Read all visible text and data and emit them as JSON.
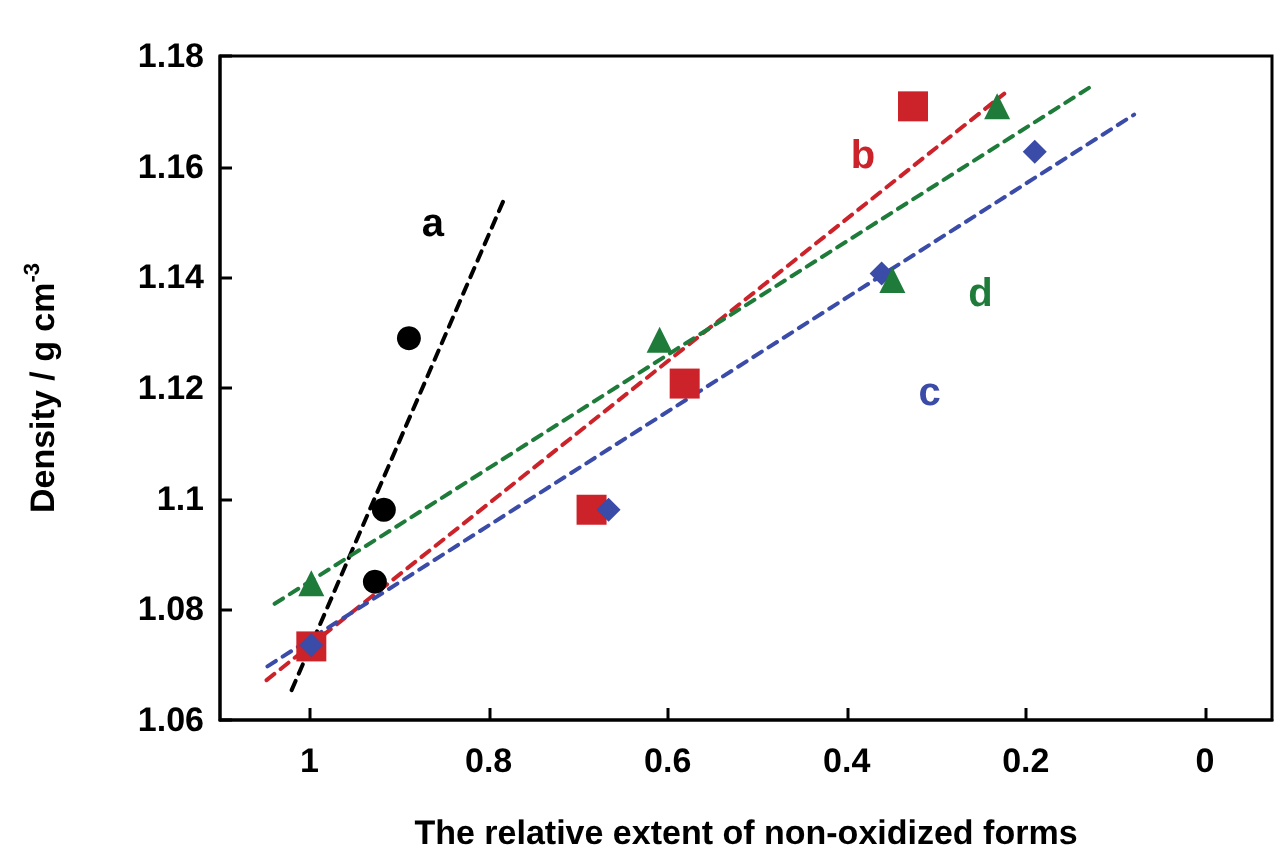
{
  "chart_data": {
    "type": "scatter",
    "xlabel": "The relative extent of non-oxidized forms",
    "ylabel": "Density / g cm$^{-3}$",
    "xlim": [
      1.1,
      -0.075
    ],
    "xticks": [
      1,
      0.8,
      0.6,
      0.4,
      0.2,
      0
    ],
    "ylim": [
      1.06,
      1.18
    ],
    "yticks": [
      1.06,
      1.08,
      1.1,
      1.12,
      1.14,
      1.16,
      1.18
    ],
    "grid": false,
    "series": [
      {
        "type": "line",
        "color": "#000000",
        "line_style": "dashed",
        "marker": "none",
        "x": [
          1.02,
          0.783
        ],
        "values": [
          1.0654,
          1.154
        ]
      },
      {
        "type": "line",
        "color": "#cc2229",
        "line_style": "dashed",
        "marker": "none",
        "x": [
          1.048,
          0.224
        ],
        "values": [
          1.0672,
          1.1732
        ]
      },
      {
        "type": "line",
        "color": "#3a4ba8",
        "line_style": "dashed",
        "marker": "none",
        "x": [
          1.047,
          0.079
        ],
        "values": [
          1.0697,
          1.1694
        ]
      },
      {
        "type": "line",
        "color": "#1e7b3a",
        "line_style": "dashed",
        "marker": "none",
        "x": [
          1.039,
          0.127
        ],
        "values": [
          1.081,
          1.1745
        ]
      },
      {
        "name": "a",
        "color": "#000000",
        "marker": "circle",
        "x": [
          0.889,
          0.917,
          0.927
        ],
        "values": [
          1.129,
          1.098,
          1.085
        ]
      },
      {
        "name": "b",
        "color": "#cc2229",
        "marker": "square",
        "x": [
          0.998,
          0.685,
          0.581,
          0.326
        ],
        "values": [
          1.0733,
          1.098,
          1.1208,
          1.1709
        ]
      },
      {
        "name": "c",
        "color": "#3a4ba8",
        "marker": "diamond",
        "x": [
          0.998,
          0.666,
          0.361,
          0.19
        ],
        "values": [
          1.0735,
          1.098,
          1.1407,
          1.1627
        ]
      },
      {
        "name": "d",
        "color": "#1e7b3a",
        "marker": "triangle",
        "x": [
          0.998,
          0.609,
          0.349,
          0.232
        ],
        "values": [
          1.0847,
          1.1287,
          1.1395,
          1.1709
        ]
      }
    ]
  }
}
